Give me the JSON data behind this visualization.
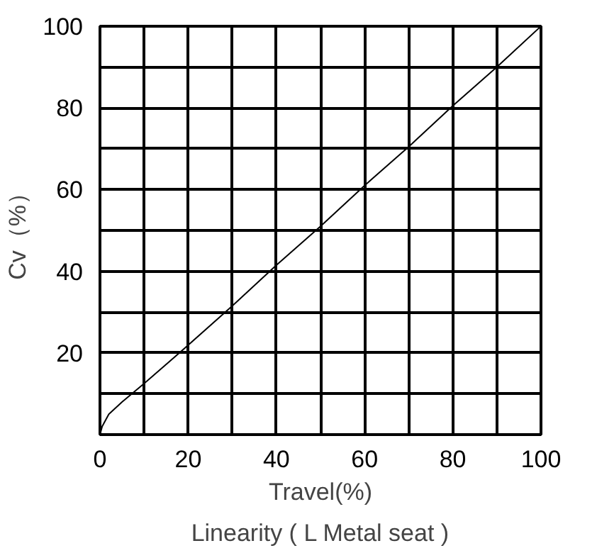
{
  "chart_data": {
    "type": "line",
    "xlabel": "Travel(%)",
    "ylabel": "Cv（%）",
    "annotations": [
      "Linearity ( L Metal seat )"
    ],
    "x": [
      0,
      0.5,
      2,
      5,
      10,
      18,
      30,
      40,
      50,
      60,
      70,
      80,
      90,
      100
    ],
    "values": [
      0,
      2,
      5,
      8,
      12.5,
      20,
      31.5,
      41.5,
      51,
      61,
      70.5,
      80.5,
      90,
      100
    ],
    "color": "#000000",
    "xlim": [
      0,
      100
    ],
    "ylim": [
      0,
      100
    ],
    "xticks": [
      0,
      {
        "value": 10,
        "label": null
      },
      20,
      {
        "value": 30,
        "label": null
      },
      40,
      {
        "value": 50,
        "label": null
      },
      60,
      {
        "value": 70,
        "label": null
      },
      80,
      {
        "value": 90,
        "label": null
      },
      100
    ],
    "yticks": [
      {
        "value": 0,
        "label": null
      },
      {
        "value": 10,
        "label": null
      },
      20,
      {
        "value": 30,
        "label": null
      },
      40,
      {
        "value": 50,
        "label": null
      },
      60,
      {
        "value": 70,
        "label": null
      },
      80,
      {
        "value": 90,
        "label": null
      },
      100
    ],
    "grid": true
  }
}
